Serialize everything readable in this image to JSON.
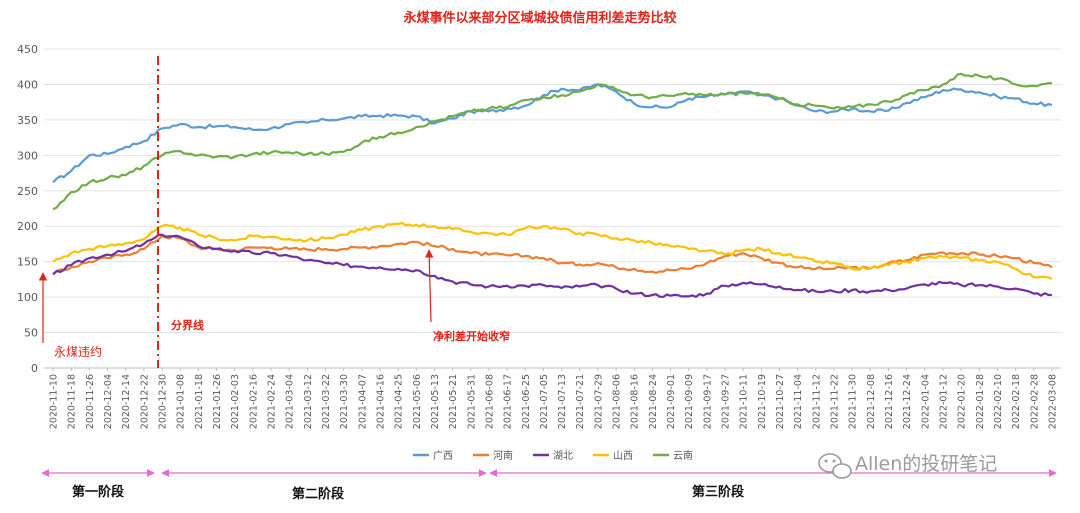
{
  "chart_data": {
    "type": "line",
    "title": "永煤事件以来部分区域城投债信用利差走势比较",
    "ylim": [
      0,
      450
    ],
    "yticks": [
      0,
      50,
      100,
      150,
      200,
      250,
      300,
      350,
      400,
      450
    ],
    "x_labels": [
      "2020-11-10",
      "2020-11-18",
      "2020-11-26",
      "2020-12-04",
      "2020-12-14",
      "2020-12-22",
      "2020-12-30",
      "2021-01-08",
      "2021-01-18",
      "2021-01-26",
      "2021-02-03",
      "2021-02-16",
      "2021-02-24",
      "2021-03-04",
      "2021-03-12",
      "2021-03-22",
      "2021-03-30",
      "2021-04-07",
      "2021-04-16",
      "2021-04-25",
      "2021-05-06",
      "2021-05-13",
      "2021-05-21",
      "2021-05-31",
      "2021-06-08",
      "2021-06-17",
      "2021-06-25",
      "2021-07-05",
      "2021-07-13",
      "2021-07-21",
      "2021-07-29",
      "2021-08-06",
      "2021-08-16",
      "2021-08-24",
      "2021-09-01",
      "2021-09-09",
      "2021-09-17",
      "2021-09-27",
      "2021-10-11",
      "2021-10-19",
      "2021-10-27",
      "2021-11-04",
      "2021-11-12",
      "2021-11-22",
      "2021-11-30",
      "2021-12-08",
      "2021-12-16",
      "2021-12-24",
      "2022-01-04",
      "2022-01-12",
      "2022-01-20",
      "2022-01-28",
      "2022-02-10",
      "2022-02-18",
      "2022-02-28",
      "2022-03-08"
    ],
    "series": [
      {
        "name": "广西",
        "color": "#5b9bd5",
        "values": [
          262,
          278,
          300,
          302,
          312,
          320,
          338,
          344,
          340,
          341,
          340,
          336,
          338,
          344,
          346,
          350,
          352,
          355,
          356,
          356,
          355,
          345,
          352,
          362,
          362,
          366,
          370,
          385,
          394,
          392,
          400,
          390,
          373,
          368,
          368,
          380,
          383,
          386,
          390,
          385,
          380,
          370,
          362,
          362,
          366,
          362,
          363,
          374,
          382,
          392,
          393,
          389,
          383,
          380,
          373,
          371
        ]
      },
      {
        "name": "河南",
        "color": "#ed7d31",
        "values": [
          133,
          142,
          150,
          155,
          160,
          168,
          186,
          183,
          170,
          168,
          166,
          170,
          170,
          168,
          167,
          168,
          168,
          170,
          172,
          175,
          178,
          172,
          168,
          162,
          160,
          159,
          158,
          155,
          148,
          146,
          148,
          142,
          140,
          136,
          138,
          140,
          148,
          158,
          162,
          155,
          148,
          142,
          140,
          140,
          142,
          140,
          148,
          152,
          160,
          163,
          162,
          160,
          158,
          155,
          148,
          142
        ]
      },
      {
        "name": "湖北",
        "color": "#7030a0",
        "values": [
          132,
          145,
          155,
          160,
          165,
          175,
          188,
          185,
          172,
          168,
          165,
          162,
          162,
          158,
          152,
          148,
          145,
          143,
          142,
          140,
          138,
          130,
          122,
          118,
          115,
          116,
          116,
          117,
          113,
          115,
          117,
          112,
          105,
          103,
          102,
          101,
          105,
          116,
          120,
          118,
          115,
          110,
          108,
          108,
          110,
          108,
          110,
          112,
          118,
          120,
          117,
          117,
          115,
          112,
          105,
          103
        ]
      },
      {
        "name": "山西",
        "color": "#ffc000",
        "values": [
          150,
          162,
          168,
          172,
          176,
          182,
          200,
          198,
          188,
          183,
          180,
          186,
          185,
          182,
          180,
          183,
          188,
          195,
          200,
          203,
          202,
          200,
          196,
          192,
          190,
          188,
          197,
          200,
          196,
          190,
          188,
          183,
          180,
          176,
          172,
          168,
          165,
          160,
          166,
          168,
          162,
          156,
          150,
          148,
          140,
          140,
          145,
          150,
          155,
          157,
          155,
          152,
          150,
          140,
          128,
          126
        ]
      },
      {
        "name": "云南",
        "color": "#70ad47",
        "values": [
          224,
          248,
          262,
          268,
          272,
          285,
          300,
          306,
          300,
          298,
          298,
          302,
          304,
          304,
          302,
          302,
          305,
          318,
          326,
          332,
          340,
          348,
          355,
          362,
          366,
          368,
          378,
          382,
          385,
          390,
          400,
          393,
          385,
          382,
          384,
          386,
          385,
          386,
          388,
          386,
          380,
          372,
          370,
          366,
          368,
          372,
          376,
          385,
          392,
          400,
          415,
          412,
          408,
          400,
          398,
          402
        ]
      }
    ],
    "annotations": {
      "yongmei": "永煤违约",
      "divider": "分界线",
      "narrowing": "净利差开始收窄"
    },
    "phases": [
      "第一阶段",
      "第二阶段",
      "第三阶段"
    ],
    "legend_position": "bottom",
    "grid": true
  },
  "watermark": "Allen的投研笔记"
}
